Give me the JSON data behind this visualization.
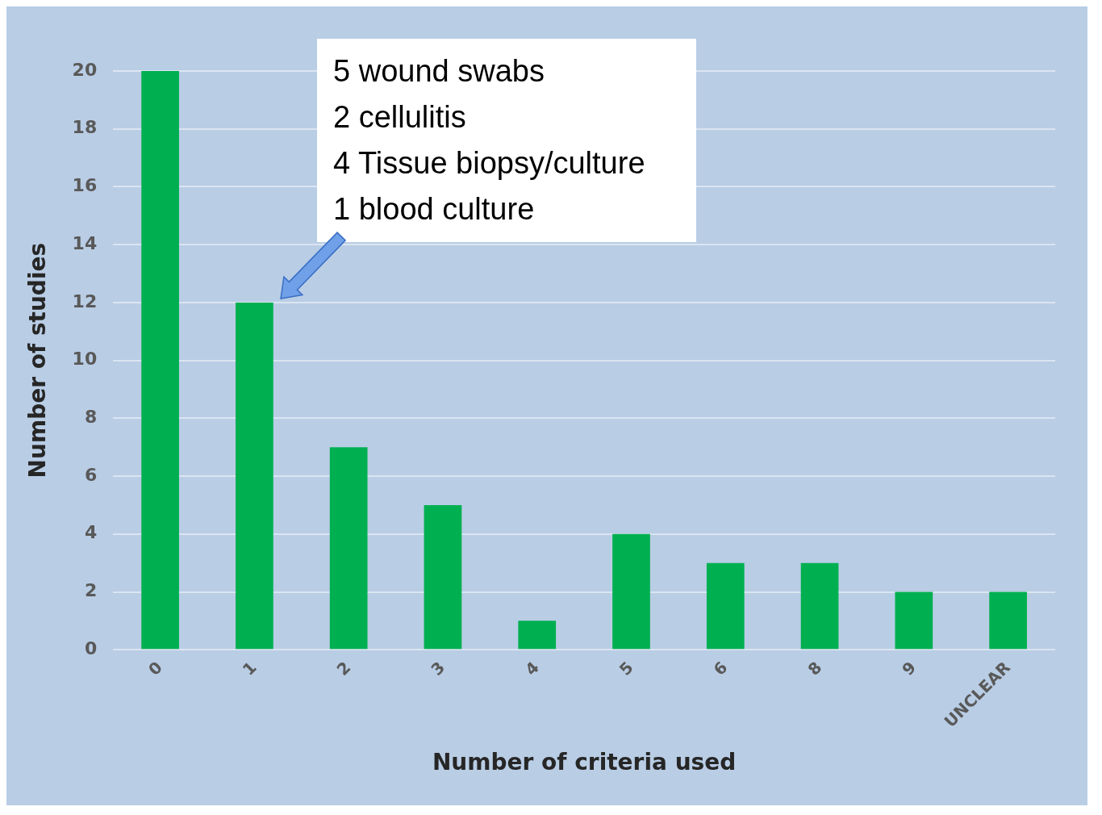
{
  "chart_data": {
    "type": "bar",
    "xlabel": "Number of criteria used",
    "ylabel": "Number of studies",
    "categories": [
      "0",
      "1",
      "2",
      "3",
      "4",
      "5",
      "6",
      "8",
      "9",
      "UNCLEAR"
    ],
    "values": [
      20,
      12,
      7,
      5,
      1,
      4,
      3,
      3,
      2,
      2
    ],
    "color": "#00b050",
    "ylim": [
      0,
      20
    ],
    "yticks": [
      0,
      2,
      4,
      6,
      8,
      10,
      12,
      14,
      16,
      18,
      20
    ],
    "grid": "y",
    "legend": false,
    "annotations": [
      "5 wound swabs\n2 cellulitis\n4 Tissue biopsy/culture\n1 blood culture"
    ]
  }
}
